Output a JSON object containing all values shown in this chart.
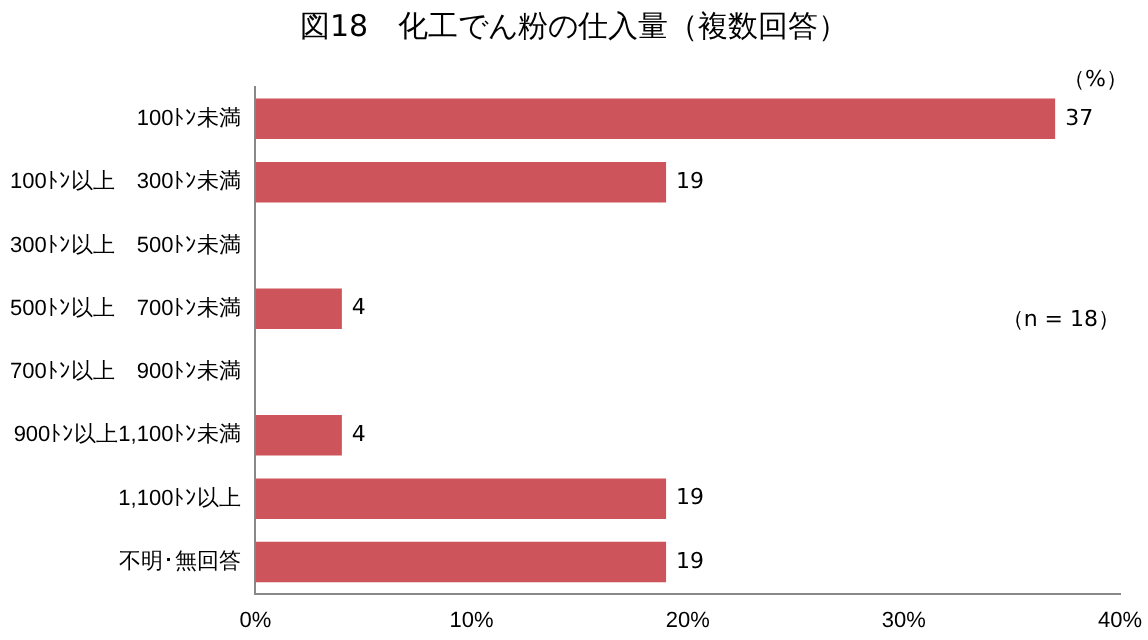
{
  "chart_data": {
    "type": "bar",
    "orientation": "horizontal",
    "title": "図18　化工でん粉の仕入量（複数回答）",
    "categories": [
      "100ﾄﾝ未満",
      "100ﾄﾝ以上　300ﾄﾝ未満",
      "300ﾄﾝ以上　500ﾄﾝ未満",
      "500ﾄﾝ以上　700ﾄﾝ未満",
      "700ﾄﾝ以上　900ﾄﾝ未満",
      "900ﾄﾝ以上1,100ﾄﾝ未満",
      "1,100ﾄﾝ以上",
      "不明･無回答"
    ],
    "values": [
      37,
      19,
      0,
      4,
      0,
      4,
      19,
      19
    ],
    "value_labels": [
      "37",
      "19",
      null,
      "4",
      null,
      "4",
      "19",
      "19"
    ],
    "color": "#cd545b",
    "xlim": [
      0,
      40
    ],
    "xticks": [
      {
        "value": 0,
        "label": "0%"
      },
      {
        "value": 10,
        "label": "10%"
      },
      {
        "value": 20,
        "label": "20%"
      },
      {
        "value": 30,
        "label": "30%"
      },
      {
        "value": 40,
        "label": "40%"
      }
    ],
    "grid": false,
    "legend": false,
    "annotations": [
      "（%）",
      "（n = 18）"
    ]
  }
}
